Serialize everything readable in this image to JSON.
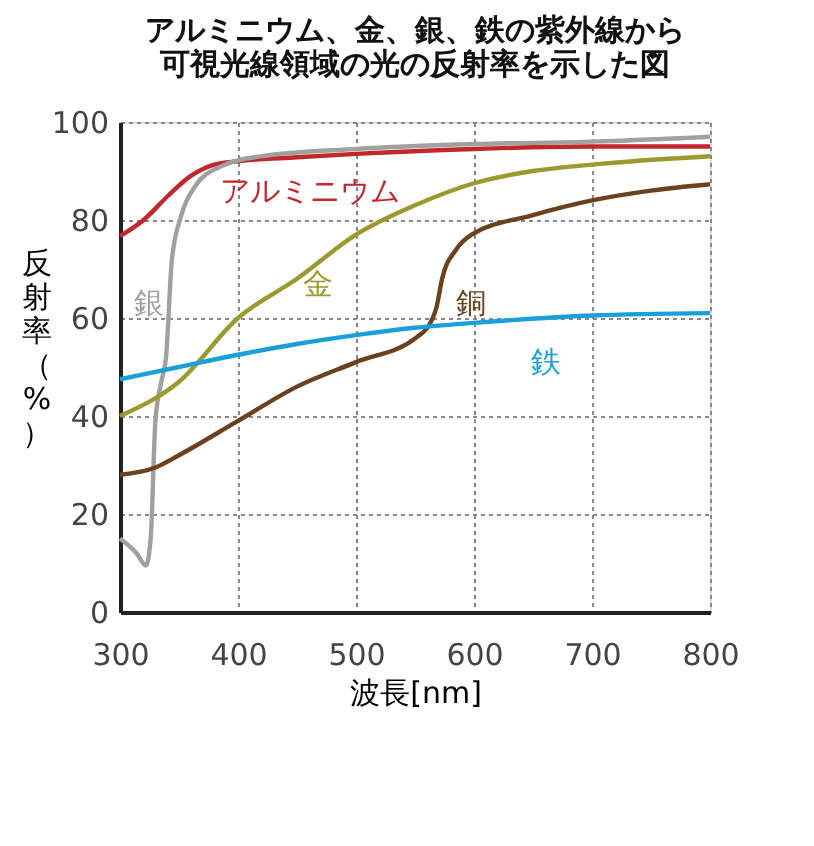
{
  "chart_data": {
    "type": "line",
    "title": "アルミニウム、金、銀、鉄の紫外線から可視光線領域の光の反射率を示した図",
    "xlabel": "波長[nm]",
    "ylabel": "反射率（%）",
    "xlim": [
      300,
      800
    ],
    "xticks": [
      300,
      400,
      500,
      600,
      700,
      800
    ],
    "ylim": [
      0,
      100
    ],
    "yticks": [
      0,
      20,
      40,
      60,
      80,
      100
    ],
    "grid": true,
    "marker": "none",
    "line_style": "solid",
    "series": [
      {
        "name": "アルミニウム",
        "color": "#c0282d",
        "x": [
          300,
          320,
          341,
          360,
          380,
          400,
          450,
          500,
          600,
          700,
          800
        ],
        "values": [
          76.7,
          80,
          85,
          89,
          91.3,
          92,
          92.8,
          93.5,
          94.5,
          95,
          95
        ]
      },
      {
        "name": "銀",
        "color": "#a0a0a0",
        "x": [
          300,
          314,
          322,
          326,
          330,
          335,
          339,
          344,
          352,
          364,
          386,
          419,
          500,
          600,
          700,
          800
        ],
        "values": [
          15,
          12,
          9.5,
          15,
          39,
          47,
          52,
          72,
          81,
          87,
          91,
          93,
          94.5,
          95.5,
          96,
          97
        ]
      },
      {
        "name": "金",
        "color": "#9a9a30",
        "x": [
          300,
          350,
          400,
          450,
          500,
          550,
          600,
          650,
          700,
          800
        ],
        "values": [
          40,
          47,
          60,
          68,
          77,
          83,
          87.5,
          90,
          91.3,
          93
        ]
      },
      {
        "name": "銅",
        "color": "#6b4220",
        "x": [
          300,
          330,
          350,
          400,
          450,
          500,
          551,
          563,
          568,
          573,
          585,
          598,
          650,
          700,
          750,
          800
        ],
        "values": [
          28,
          29.5,
          32,
          39,
          46,
          51,
          56,
          59,
          62,
          68,
          74,
          77,
          81,
          84,
          86,
          87.3
        ]
      },
      {
        "name": "鉄",
        "color": "#1aa0d8",
        "x": [
          300,
          350,
          400,
          450,
          500,
          550,
          600,
          700,
          800
        ],
        "values": [
          47.5,
          50,
          52.5,
          54.7,
          56.5,
          58,
          59,
          60.5,
          61
        ]
      }
    ]
  }
}
